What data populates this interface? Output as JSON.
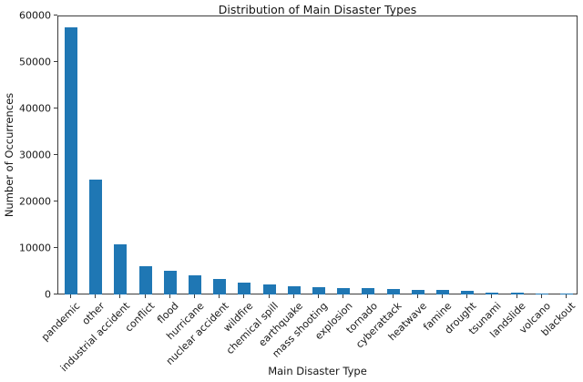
{
  "chart_data": {
    "type": "bar",
    "title": "Distribution of Main Disaster Types",
    "xlabel": "Main Disaster Type",
    "ylabel": "Number of Occurrences",
    "categories": [
      "pandemic",
      "other",
      "industrial accident",
      "conflict",
      "flood",
      "hurricane",
      "nuclear accident",
      "wildfire",
      "chemical spill",
      "earthquake",
      "mass shooting",
      "explosion",
      "tornado",
      "cyberattack",
      "heatwave",
      "famine",
      "drought",
      "tsunami",
      "landslide",
      "volcano",
      "blackout"
    ],
    "values": [
      57500,
      24800,
      10800,
      6000,
      5000,
      4100,
      3300,
      2600,
      2100,
      1800,
      1600,
      1400,
      1300,
      1100,
      1000,
      900,
      700,
      400,
      350,
      280,
      250
    ],
    "ylim": [
      0,
      60000
    ],
    "yticks": [
      0,
      10000,
      20000,
      30000,
      40000,
      50000,
      60000
    ],
    "grid": false,
    "legend": "none",
    "bar_color": "#1f77b4",
    "x_tick_rotation": 45
  }
}
